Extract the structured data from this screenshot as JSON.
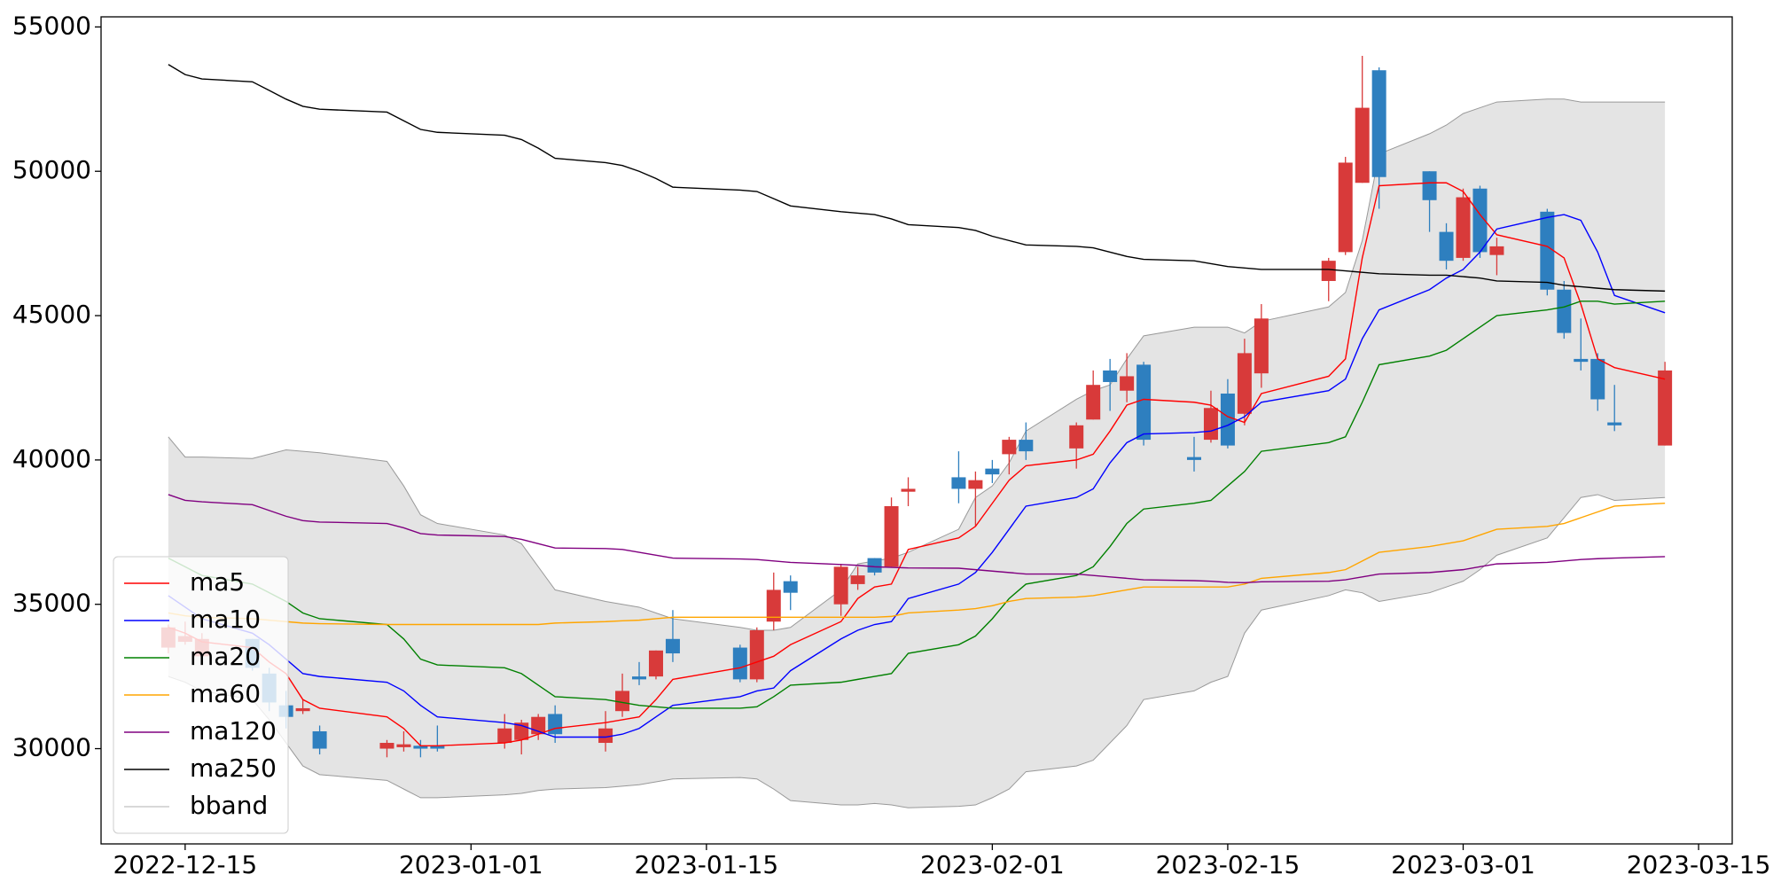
{
  "chart_data": {
    "type": "candlestick",
    "x": [
      "2022-12-14",
      "2022-12-15",
      "2022-12-16",
      "2022-12-19",
      "2022-12-20",
      "2022-12-21",
      "2022-12-22",
      "2022-12-23",
      "2022-12-27",
      "2022-12-28",
      "2022-12-29",
      "2022-12-30",
      "2023-01-03",
      "2023-01-04",
      "2023-01-05",
      "2023-01-06",
      "2023-01-09",
      "2023-01-10",
      "2023-01-11",
      "2023-01-12",
      "2023-01-13",
      "2023-01-17",
      "2023-01-18",
      "2023-01-19",
      "2023-01-20",
      "2023-01-23",
      "2023-01-24",
      "2023-01-25",
      "2023-01-26",
      "2023-01-27",
      "2023-01-30",
      "2023-01-31",
      "2023-02-01",
      "2023-02-02",
      "2023-02-03",
      "2023-02-06",
      "2023-02-07",
      "2023-02-08",
      "2023-02-09",
      "2023-02-10",
      "2023-02-13",
      "2023-02-14",
      "2023-02-15",
      "2023-02-16",
      "2023-02-17",
      "2023-02-21",
      "2023-02-22",
      "2023-02-23",
      "2023-02-24",
      "2023-02-27",
      "2023-02-28",
      "2023-03-01",
      "2023-03-02",
      "2023-03-03",
      "2023-03-06",
      "2023-03-07",
      "2023-03-08",
      "2023-03-09",
      "2023-03-10",
      "2023-03-13"
    ],
    "open": [
      33500,
      33700,
      33200,
      33800,
      32600,
      31500,
      31300,
      30600,
      30000,
      30050,
      30100,
      30100,
      30200,
      30300,
      30500,
      31200,
      30200,
      31300,
      32500,
      32500,
      33800,
      33500,
      32400,
      34400,
      35800,
      35000,
      35700,
      36600,
      36300,
      38900,
      39400,
      39000,
      39700,
      40200,
      40700,
      40400,
      41400,
      43100,
      42400,
      43300,
      40100,
      40700,
      42300,
      41600,
      43000,
      46200,
      47200,
      49600,
      53500,
      50000,
      47900,
      47000,
      49400,
      47100,
      48600,
      45900,
      43500,
      43500,
      41300,
      40500
    ],
    "high": [
      34300,
      34400,
      34000,
      33800,
      32800,
      32000,
      31700,
      30800,
      30300,
      30600,
      30300,
      30800,
      31200,
      31000,
      31200,
      31500,
      31300,
      32600,
      33000,
      33400,
      34800,
      33600,
      34200,
      36100,
      36000,
      36400,
      36300,
      36600,
      38700,
      39400,
      40300,
      39600,
      40000,
      40800,
      41300,
      41300,
      43100,
      43500,
      43700,
      43400,
      40800,
      42400,
      42800,
      44200,
      45400,
      47000,
      50500,
      54000,
      53600,
      50000,
      48200,
      49400,
      49500,
      47700,
      48700,
      46200,
      44900,
      43700,
      42600,
      43400
    ],
    "low": [
      33300,
      33600,
      33100,
      32700,
      31300,
      30700,
      31200,
      29800,
      29700,
      29900,
      29700,
      29900,
      30000,
      29800,
      30300,
      30200,
      29900,
      31100,
      32200,
      32400,
      33000,
      32300,
      32300,
      34100,
      34800,
      34600,
      35500,
      36000,
      36300,
      38400,
      38500,
      37700,
      39200,
      39500,
      40000,
      39700,
      41400,
      41700,
      42000,
      40500,
      39600,
      40600,
      40400,
      41200,
      42500,
      45500,
      47100,
      49600,
      48700,
      47900,
      46600,
      46900,
      47000,
      46400,
      45700,
      44200,
      43100,
      41700,
      41000,
      40500
    ],
    "close": [
      34200,
      33900,
      33800,
      32800,
      31600,
      31100,
      31400,
      30000,
      30200,
      30150,
      30000,
      30000,
      30700,
      30900,
      31100,
      30500,
      30700,
      32000,
      32400,
      33400,
      33300,
      32400,
      34100,
      35500,
      35400,
      36300,
      36000,
      36100,
      38400,
      39000,
      39000,
      39300,
      39500,
      40700,
      40300,
      41200,
      42600,
      42700,
      42900,
      40700,
      40000,
      41800,
      40500,
      43700,
      44900,
      46900,
      50300,
      52200,
      49800,
      49000,
      46900,
      49100,
      47200,
      47400,
      45900,
      44400,
      43400,
      42100,
      41200,
      43100
    ],
    "up_color": "#d83a3a",
    "down_color": "#2e7fbf",
    "series": [
      {
        "name": "ma5",
        "color": "#ff0000",
        "values": [
          34200,
          34000,
          33700,
          33500,
          33000,
          32600,
          31700,
          31400,
          31100,
          30700,
          30100,
          30100,
          30200,
          30300,
          30500,
          30700,
          30900,
          31000,
          31100,
          31700,
          32400,
          32800,
          33000,
          33200,
          33600,
          34400,
          35200,
          35600,
          35700,
          36900,
          37300,
          37700,
          38500,
          39300,
          39800,
          40000,
          40200,
          41000,
          41900,
          42100,
          42000,
          41900,
          41500,
          41300,
          42300,
          42900,
          43500,
          47000,
          49500,
          49600,
          49600,
          49300,
          48500,
          47800,
          47400,
          47000,
          45400,
          43500,
          43200,
          42800
        ]
      },
      {
        "name": "ma10",
        "color": "#0000ff",
        "values": [
          35300,
          34900,
          34500,
          34000,
          33600,
          33100,
          32600,
          32500,
          32300,
          32000,
          31500,
          31100,
          30900,
          30800,
          30600,
          30400,
          30400,
          30500,
          30700,
          31100,
          31500,
          31800,
          32000,
          32100,
          32700,
          33800,
          34100,
          34300,
          34400,
          35200,
          35700,
          36100,
          36800,
          37600,
          38400,
          38700,
          39000,
          39900,
          40600,
          40900,
          40950,
          41000,
          41200,
          41500,
          42000,
          42400,
          42800,
          44200,
          45200,
          45900,
          46300,
          46600,
          47200,
          48000,
          48400,
          48500,
          48300,
          47200,
          45700,
          45100
        ]
      },
      {
        "name": "ma20",
        "color": "#008000",
        "values": [
          36600,
          36300,
          36000,
          35700,
          35400,
          35100,
          34700,
          34500,
          34300,
          33800,
          33100,
          32900,
          32800,
          32600,
          32200,
          31800,
          31700,
          31600,
          31500,
          31450,
          31400,
          31400,
          31450,
          31800,
          32200,
          32300,
          32400,
          32500,
          32600,
          33300,
          33600,
          33900,
          34500,
          35200,
          35700,
          36000,
          36300,
          37000,
          37800,
          38300,
          38500,
          38600,
          39100,
          39600,
          40300,
          40600,
          40800,
          42000,
          43300,
          43600,
          43800,
          44200,
          44600,
          45000,
          45200,
          45300,
          45500,
          45500,
          45400,
          45500
        ]
      },
      {
        "name": "ma60",
        "color": "#ffa500",
        "values": [
          34700,
          34600,
          34550,
          34500,
          34450,
          34400,
          34350,
          34330,
          34300,
          34300,
          34300,
          34300,
          34300,
          34300,
          34300,
          34350,
          34400,
          34430,
          34450,
          34500,
          34550,
          34550,
          34550,
          34550,
          34550,
          34550,
          34550,
          34550,
          34580,
          34700,
          34800,
          34850,
          34950,
          35100,
          35200,
          35250,
          35300,
          35400,
          35500,
          35600,
          35600,
          35600,
          35600,
          35700,
          35900,
          36100,
          36200,
          36500,
          36800,
          37000,
          37100,
          37200,
          37400,
          37600,
          37700,
          37800,
          38000,
          38200,
          38400,
          38500
        ]
      },
      {
        "name": "ma120",
        "color": "#800080",
        "values": [
          38800,
          38600,
          38550,
          38450,
          38250,
          38050,
          37900,
          37850,
          37800,
          37650,
          37450,
          37400,
          37350,
          37250,
          37100,
          36950,
          36930,
          36900,
          36800,
          36700,
          36600,
          36570,
          36550,
          36500,
          36450,
          36380,
          36350,
          36300,
          36280,
          36260,
          36250,
          36200,
          36150,
          36100,
          36050,
          36050,
          36000,
          35950,
          35900,
          35850,
          35820,
          35800,
          35760,
          35750,
          35780,
          35800,
          35850,
          35950,
          36050,
          36100,
          36150,
          36200,
          36300,
          36400,
          36450,
          36500,
          36550,
          36580,
          36600,
          36650
        ]
      },
      {
        "name": "ma250",
        "color": "#000000",
        "values": [
          53700,
          53350,
          53200,
          53100,
          52800,
          52500,
          52250,
          52150,
          52050,
          51750,
          51450,
          51350,
          51250,
          51100,
          50800,
          50450,
          50300,
          50200,
          50000,
          49750,
          49450,
          49350,
          49300,
          49050,
          48800,
          48600,
          48550,
          48500,
          48350,
          48150,
          48050,
          47950,
          47750,
          47600,
          47450,
          47400,
          47350,
          47200,
          47050,
          46950,
          46900,
          46800,
          46700,
          46650,
          46600,
          46600,
          46550,
          46500,
          46450,
          46400,
          46400,
          46350,
          46300,
          46200,
          46150,
          46050,
          46000,
          45950,
          45900,
          45850
        ]
      }
    ],
    "band": {
      "name": "bband",
      "color": "#999999",
      "fill": "#e4e4e4",
      "upper": [
        40800,
        40100,
        40100,
        40050,
        40200,
        40350,
        40300,
        40250,
        39950,
        39100,
        38100,
        37800,
        37400,
        37100,
        36300,
        35500,
        35100,
        35000,
        34900,
        34700,
        34500,
        34200,
        34100,
        34100,
        34200,
        35500,
        36400,
        36500,
        36600,
        36800,
        37600,
        38700,
        39100,
        39900,
        41000,
        42100,
        42400,
        42600,
        43500,
        44300,
        44600,
        44600,
        44600,
        44400,
        44800,
        45300,
        45800,
        47600,
        50600,
        51300,
        51600,
        52000,
        52200,
        52400,
        52500,
        52500,
        52400,
        52400,
        52400,
        52400
      ],
      "lower": [
        32500,
        32300,
        32000,
        31700,
        31000,
        30200,
        29400,
        29100,
        28900,
        28600,
        28300,
        28300,
        28400,
        28450,
        28550,
        28600,
        28650,
        28700,
        28750,
        28850,
        28950,
        29000,
        28950,
        28600,
        28200,
        28050,
        28050,
        28100,
        28050,
        27950,
        28000,
        28050,
        28300,
        28600,
        29200,
        29400,
        29600,
        30200,
        30800,
        31700,
        32000,
        32300,
        32500,
        34000,
        34800,
        35300,
        35500,
        35400,
        35100,
        35400,
        35600,
        35800,
        36200,
        36700,
        37300,
        38000,
        38700,
        38800,
        38600,
        38700
      ]
    },
    "xlim": [
      "2022-12-10",
      "2023-03-17"
    ],
    "xticks": [
      "2022-12-15",
      "2023-01-01",
      "2023-01-15",
      "2023-02-01",
      "2023-02-15",
      "2023-03-01",
      "2023-03-15"
    ],
    "ylim": [
      26700,
      55350
    ],
    "yticks": [
      30000,
      35000,
      40000,
      45000,
      50000,
      55000
    ],
    "legend": "lower left"
  }
}
